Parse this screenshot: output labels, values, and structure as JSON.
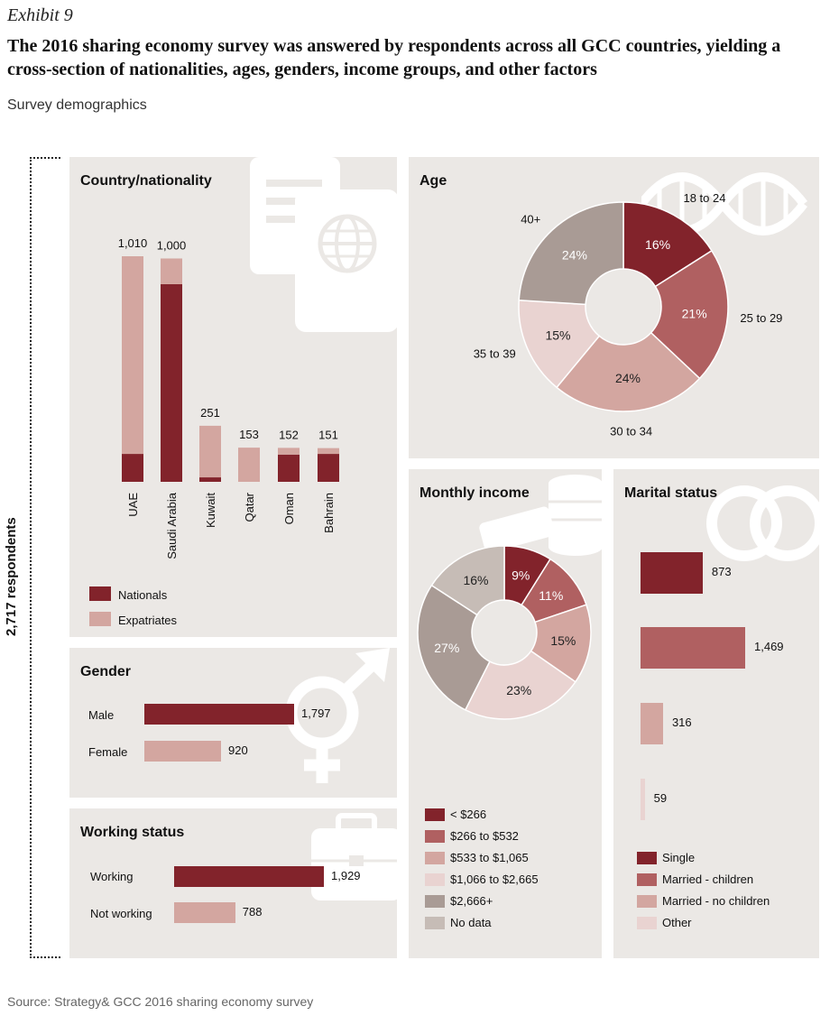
{
  "header": {
    "exhibit": "Exhibit 9",
    "title": "The 2016 sharing economy survey was answered by respondents across all GCC countries, yielding a cross-section of nationalities, ages, genders, income groups, and other factors",
    "subtitle": "Survey demographics"
  },
  "respondents_label": "2,717 respondents",
  "source": "Source: Strategy& GCC 2016 sharing economy survey",
  "colors": {
    "c1": "#82232b",
    "c2": "#b06061",
    "c3": "#d3a6a0",
    "c4": "#e9d3d1",
    "c5": "#a99b95",
    "c6": "#c6bcb6",
    "panel": "#ebe8e5"
  },
  "icons": [
    "passport-icon",
    "dna-icon",
    "coins-icon",
    "rings-icon",
    "gender-icon",
    "briefcase-icon"
  ],
  "chart_data": [
    {
      "id": "country",
      "type": "bar",
      "title": "Country/nationality",
      "categories": [
        "UAE",
        "Saudi Arabia",
        "Kuwait",
        "Qatar",
        "Oman",
        "Bahrain"
      ],
      "totals_labels": [
        "1,010",
        "1,000",
        "251",
        "153",
        "152",
        "151"
      ],
      "series": [
        {
          "name": "Nationals",
          "values": [
            125,
            885,
            20,
            0,
            122,
            125
          ]
        },
        {
          "name": "Expatriates",
          "values": [
            885,
            115,
            231,
            153,
            30,
            26
          ]
        }
      ],
      "ylim": [
        0,
        1100
      ],
      "legend": [
        "Nationals",
        "Expatriates"
      ]
    },
    {
      "id": "age",
      "type": "pie",
      "title": "Age",
      "labels": [
        "18 to 24",
        "25 to 29",
        "30 to 34",
        "35 to 39",
        "40+"
      ],
      "values": [
        16,
        21,
        24,
        15,
        24
      ],
      "value_labels": [
        "16%",
        "21%",
        "24%",
        "15%",
        "24%"
      ]
    },
    {
      "id": "gender",
      "type": "bar",
      "title": "Gender",
      "categories": [
        "Male",
        "Female"
      ],
      "values": [
        1797,
        920
      ],
      "value_labels": [
        "1,797",
        "920"
      ]
    },
    {
      "id": "working",
      "type": "bar",
      "title": "Working status",
      "categories": [
        "Working",
        "Not working"
      ],
      "values": [
        1929,
        788
      ],
      "value_labels": [
        "1,929",
        "788"
      ]
    },
    {
      "id": "income",
      "type": "pie",
      "title": "Monthly income",
      "labels": [
        "< $266",
        "$266 to $532",
        "$533 to $1,065",
        "$1,066 to $2,665",
        "$2,666+",
        "No data"
      ],
      "values": [
        9,
        11,
        15,
        23,
        27,
        16
      ],
      "value_labels": [
        "9%",
        "11%",
        "15%",
        "23%",
        "27%",
        "16%"
      ]
    },
    {
      "id": "marital",
      "type": "bar",
      "title": "Marital status",
      "categories": [
        "Single",
        "Married - children",
        "Married - no children",
        "Other"
      ],
      "values": [
        873,
        1469,
        316,
        59
      ],
      "value_labels": [
        "873",
        "1,469",
        "316",
        "59"
      ]
    }
  ]
}
